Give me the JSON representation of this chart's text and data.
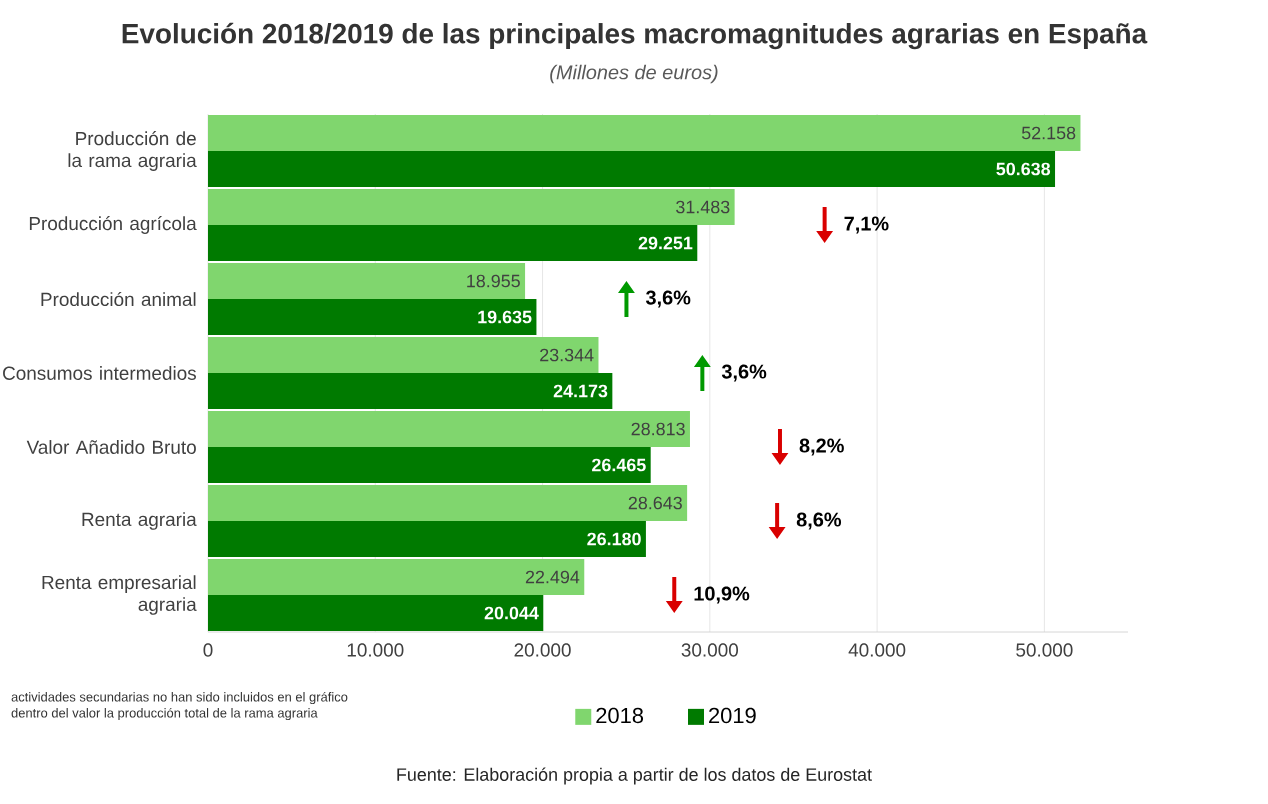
{
  "chart_data": {
    "type": "bar",
    "orientation": "horizontal",
    "title": "Evolución 2018/2019 de las principales macromagnitudes agrarias en España",
    "subtitle": "(Millones de euros)",
    "categories": [
      "Producción de la rama agraria",
      "Producción agrícola",
      "Producción animal",
      "Consumos intermedios",
      "Valor Añadido Bruto",
      "Renta agraria",
      "Renta empresarial agraria"
    ],
    "series": [
      {
        "name": "2018",
        "color": "#80d66e",
        "values": [
          52158,
          31483,
          18955,
          23344,
          28813,
          28643,
          22494
        ],
        "value_labels": [
          "52.158",
          "31.483",
          "18.955",
          "23.344",
          "28.813",
          "28.643",
          "22.494"
        ]
      },
      {
        "name": "2019",
        "color": "#007a00",
        "values": [
          50638,
          29251,
          19635,
          24173,
          26465,
          26180,
          20044
        ],
        "value_labels": [
          "50.638",
          "29.251",
          "19.635",
          "24.173",
          "26.465",
          "26.180",
          "20.044"
        ]
      }
    ],
    "xlim": [
      0,
      55000
    ],
    "xticks": [
      0,
      {
        "value": 10000,
        "label": "10.000"
      },
      {
        "value": 20000,
        "label": "20.000"
      },
      {
        "value": 30000,
        "label": "30.000"
      },
      {
        "value": 40000,
        "label": "40.000"
      },
      {
        "value": 50000,
        "label": "50.000"
      }
    ],
    "grid": "x",
    "legend": "bottom",
    "annotations": [
      "7,1%",
      "3,6%",
      "3,6%",
      "8,2%",
      "8,6%",
      "10,9%",
      "actividades secundarias no han sido incluidos en el gráfico",
      "dentro del valor la producción total de la rama agraria",
      "Fuente: Elaboración propia a partir de los datos de Eurostat"
    ]
  }
}
